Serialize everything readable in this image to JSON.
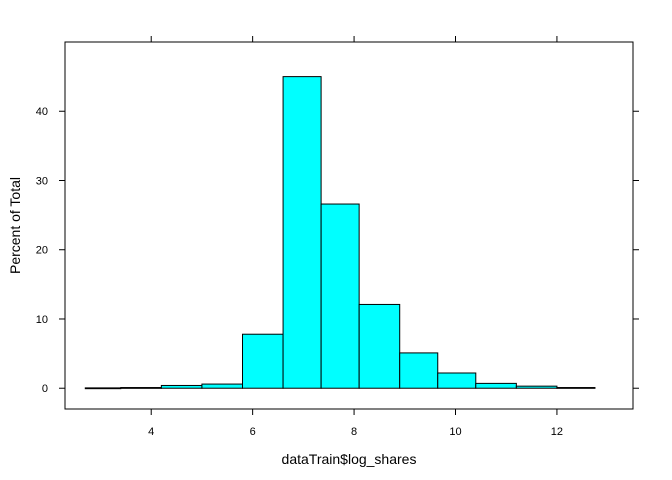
{
  "chart_data": {
    "type": "bar",
    "histogram": true,
    "xlabel": "dataTrain$log_shares",
    "ylabel": "Percent of Total",
    "xlim": [
      2.3,
      13.5
    ],
    "ylim": [
      -3,
      50
    ],
    "x_ticks": [
      4,
      6,
      8,
      10,
      12
    ],
    "y_ticks": [
      0,
      10,
      20,
      30,
      40
    ],
    "bins": [
      {
        "x0": 2.7,
        "x1": 3.4,
        "value": 0.05
      },
      {
        "x0": 3.4,
        "x1": 4.2,
        "value": 0.1
      },
      {
        "x0": 4.2,
        "x1": 5.0,
        "value": 0.4
      },
      {
        "x0": 5.0,
        "x1": 5.8,
        "value": 0.6
      },
      {
        "x0": 5.8,
        "x1": 6.6,
        "value": 7.8
      },
      {
        "x0": 6.6,
        "x1": 7.35,
        "value": 45.0
      },
      {
        "x0": 7.35,
        "x1": 8.1,
        "value": 26.6
      },
      {
        "x0": 8.1,
        "x1": 8.9,
        "value": 12.1
      },
      {
        "x0": 8.9,
        "x1": 9.65,
        "value": 5.1
      },
      {
        "x0": 9.65,
        "x1": 10.4,
        "value": 2.2
      },
      {
        "x0": 10.4,
        "x1": 11.2,
        "value": 0.7
      },
      {
        "x0": 11.2,
        "x1": 12.0,
        "value": 0.3
      },
      {
        "x0": 12.0,
        "x1": 12.75,
        "value": 0.1
      }
    ],
    "bar_color": "#00ffff",
    "bar_stroke": "#000000",
    "grid": false,
    "legend": "none"
  }
}
